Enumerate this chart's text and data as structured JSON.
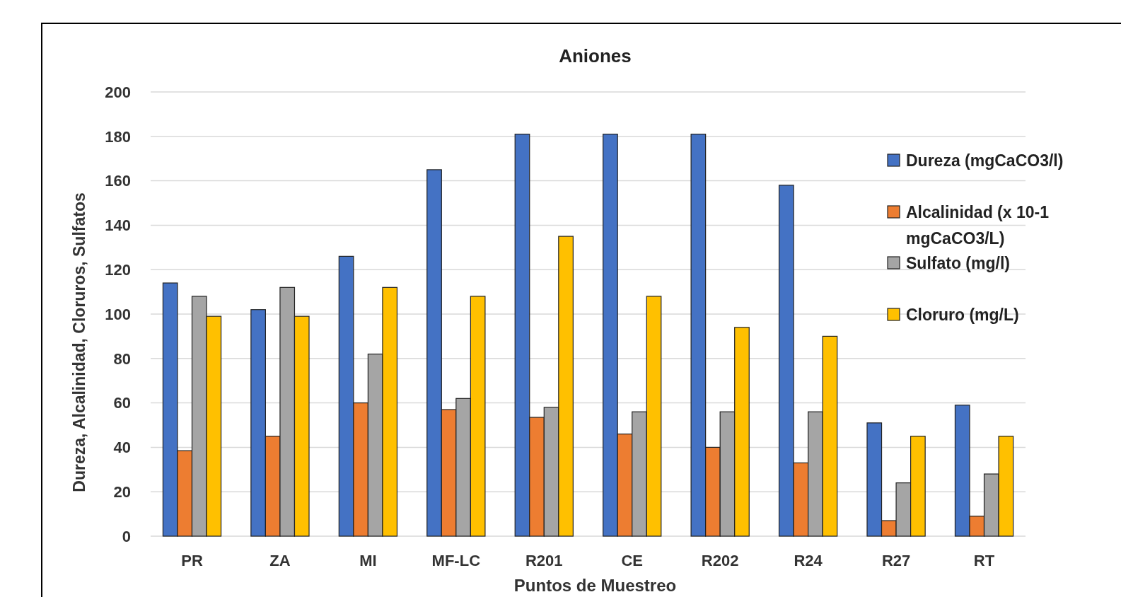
{
  "chart_data": {
    "type": "bar",
    "title": "Aniones",
    "xlabel": "Puntos de Muestreo",
    "ylabel": "Dureza, Alcalinidad, Cloruros, Sulfatos",
    "categories": [
      "PR",
      "ZA",
      "MI",
      "MF-LC",
      "R201",
      "CE",
      "R202",
      "R24",
      "R27",
      "RT"
    ],
    "series": [
      {
        "name": "Dureza (mgCaCO3/l)",
        "color": "#4472c4",
        "values": [
          114,
          102,
          126,
          165,
          181,
          181,
          181,
          158,
          51,
          59
        ]
      },
      {
        "name": "Alcalinidad (x 10-1 mgCaCO3/L)",
        "color": "#ed7d31",
        "values": [
          38.5,
          45,
          60,
          57,
          53.5,
          46,
          40,
          33,
          7,
          9
        ]
      },
      {
        "name": "Sulfato (mg/l)",
        "color": "#a5a5a5",
        "values": [
          108,
          112,
          82,
          62,
          58,
          56,
          56,
          56,
          24,
          28
        ]
      },
      {
        "name": "Cloruro (mg/L)",
        "color": "#ffc000",
        "values": [
          99,
          99,
          112,
          108,
          135,
          108,
          94,
          90,
          45,
          45
        ]
      }
    ],
    "ylim": [
      0,
      200
    ],
    "yticks": [
      0,
      20,
      40,
      60,
      80,
      100,
      120,
      140,
      160,
      180,
      200
    ],
    "grid": "y",
    "legend": "right"
  }
}
